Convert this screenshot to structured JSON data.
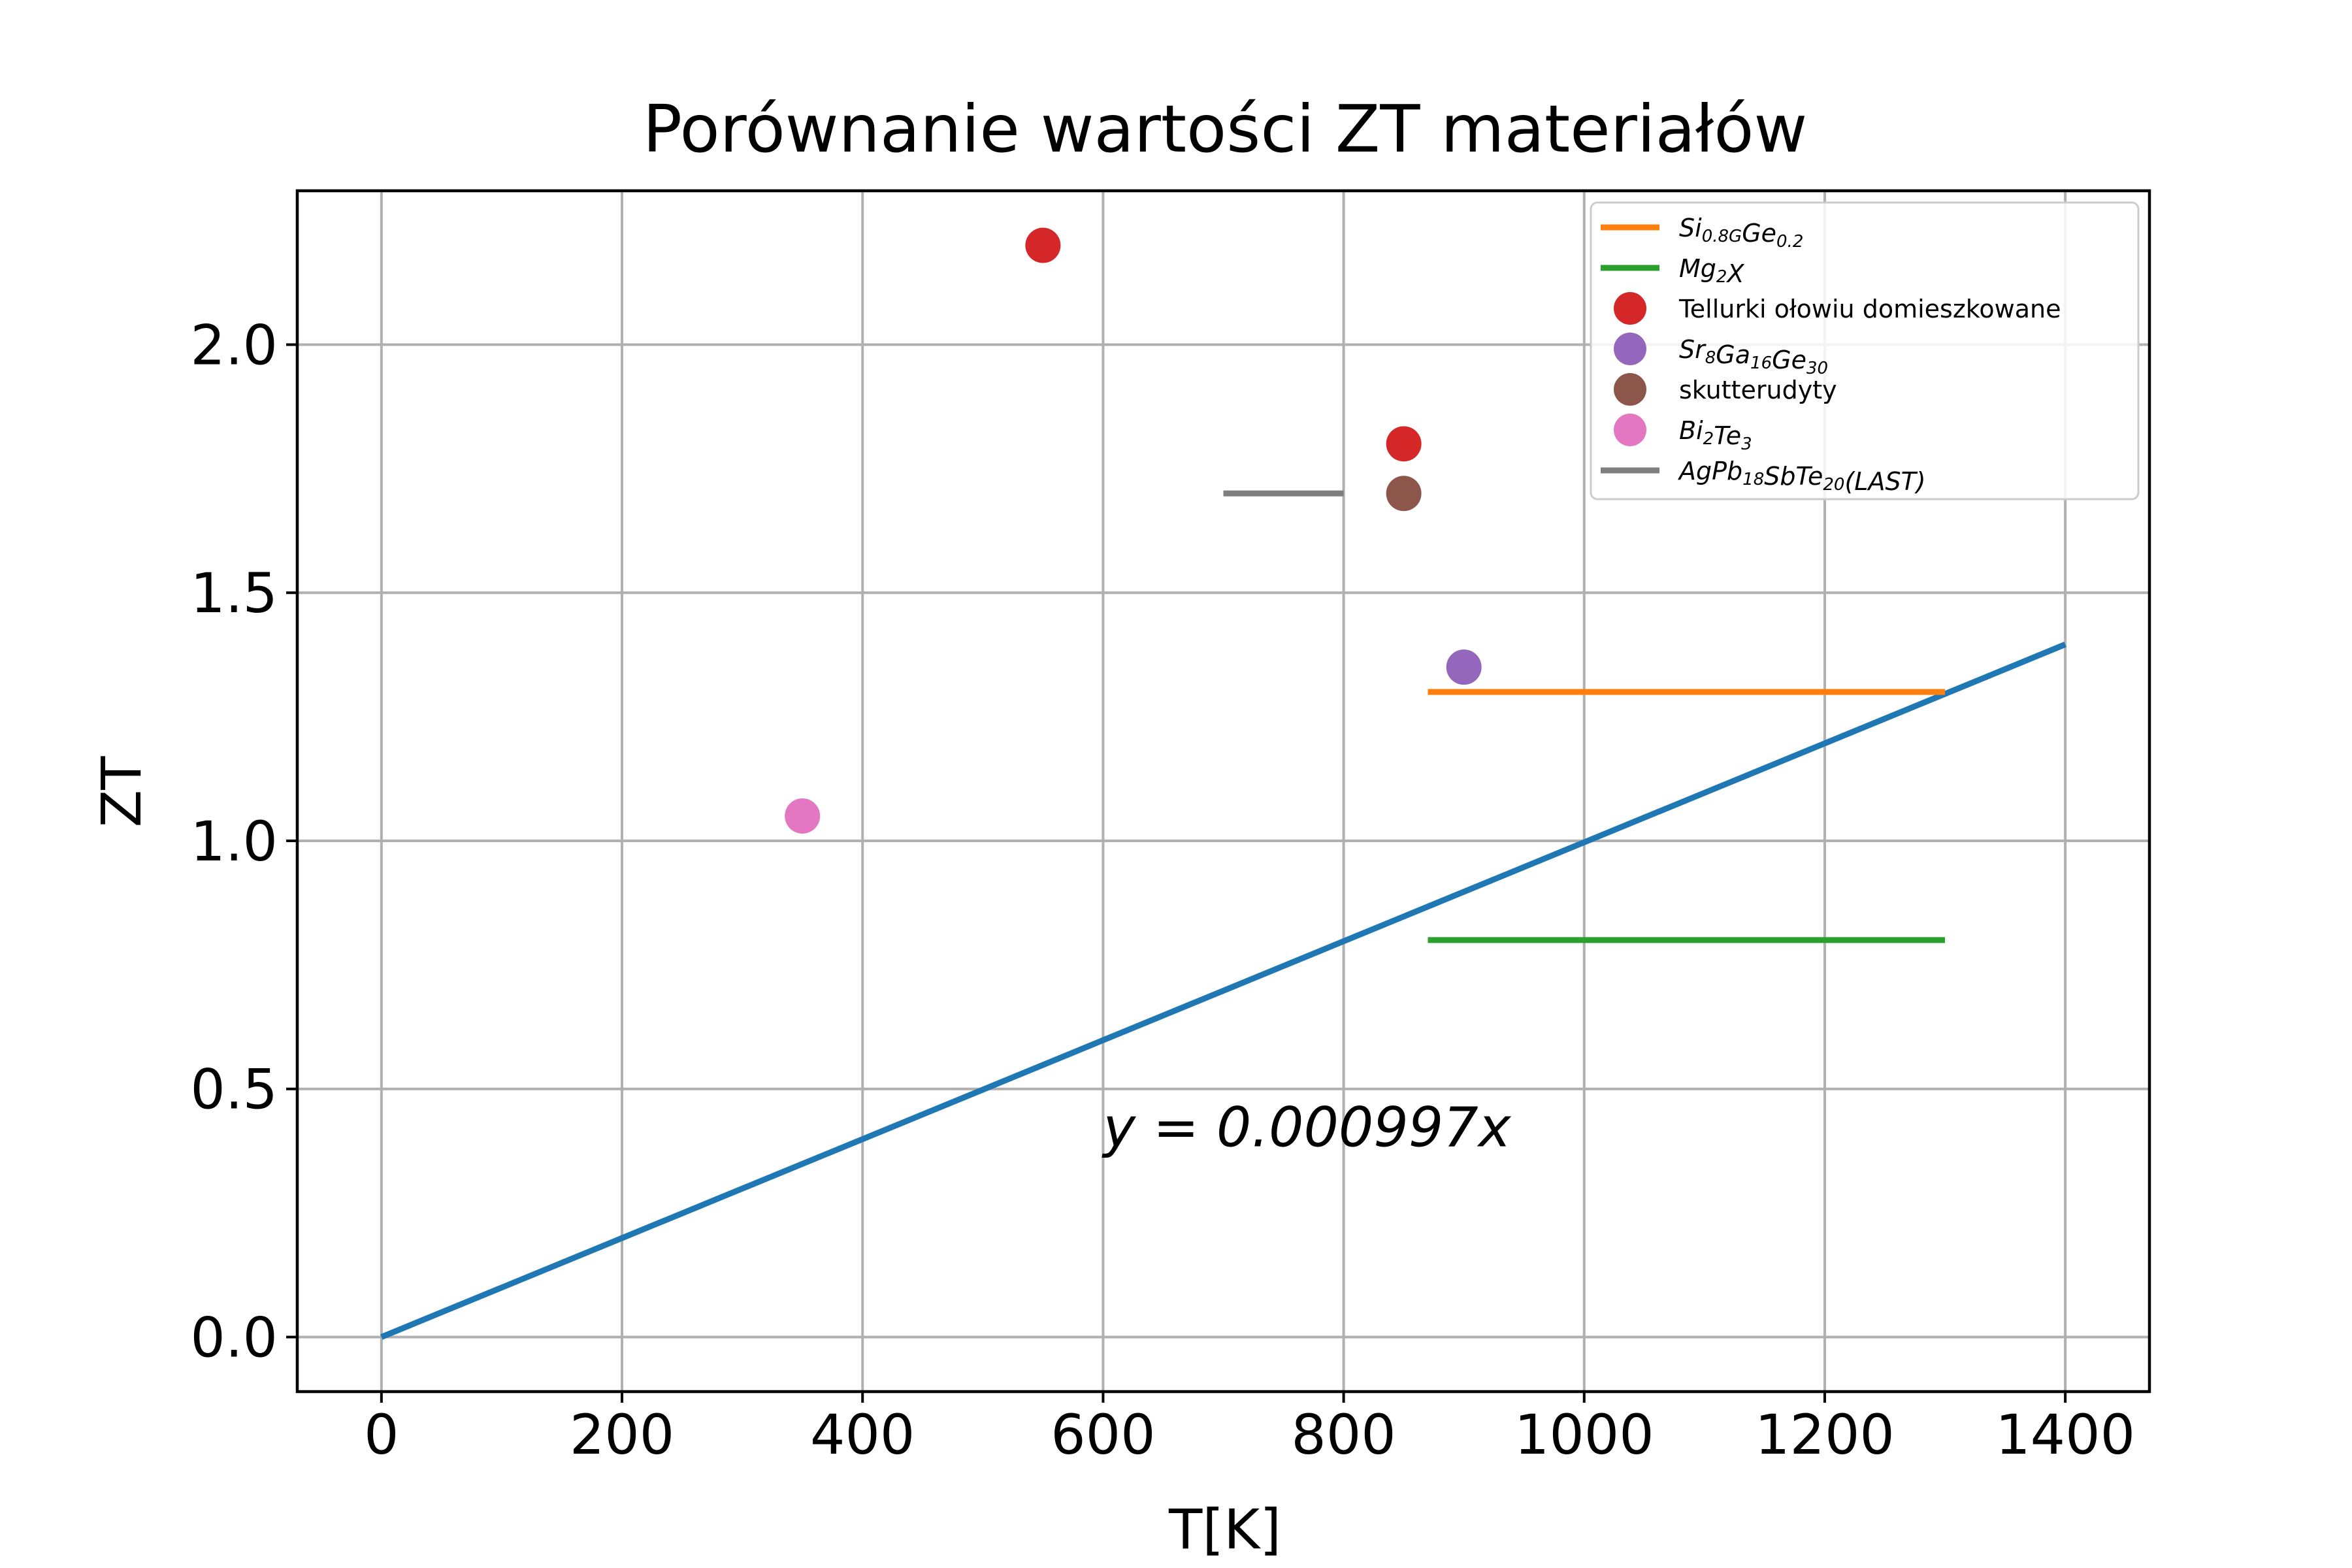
{
  "chart_data": {
    "type": "line",
    "title": "Porównanie wartości ZT materiałów",
    "xlabel": "T[K]",
    "ylabel": "ZT",
    "xlim": [
      -70,
      1470
    ],
    "ylim": [
      -0.11,
      2.31
    ],
    "xticks": [
      0,
      200,
      400,
      600,
      800,
      1000,
      1200,
      1400
    ],
    "yticks": [
      0.0,
      0.5,
      1.0,
      1.5,
      2.0
    ],
    "grid": true,
    "legend_position": "top-right",
    "annotation": {
      "text": "y = 0.000997x",
      "x": 600,
      "y": 0.4
    },
    "series": [
      {
        "kind": "line",
        "color": "#1f77b4",
        "x": [
          0,
          1400
        ],
        "y": [
          0.0,
          1.3958
        ],
        "in_legend": false
      },
      {
        "kind": "line",
        "name": "Si0.8GGe0.2",
        "label_parts": [
          [
            "Si",
            ""
          ],
          [
            "0.8G",
            "sub"
          ],
          [
            "Ge",
            ""
          ],
          [
            "0.2",
            "sub"
          ]
        ],
        "color": "#ff7f0e",
        "x": [
          870,
          1300
        ],
        "y": [
          1.3,
          1.3
        ]
      },
      {
        "kind": "line",
        "name": "Mg2X",
        "label_parts": [
          [
            "Mg",
            ""
          ],
          [
            "2",
            "sub"
          ],
          [
            "X",
            ""
          ]
        ],
        "color": "#2ca02c",
        "x": [
          870,
          1300
        ],
        "y": [
          0.8,
          0.8
        ]
      },
      {
        "kind": "scatter",
        "name": "Tellurki ołowiu domieszkowane",
        "label_parts": [
          [
            "Tellurki ołowiu domieszkowane",
            "plain"
          ]
        ],
        "color": "#d62728",
        "x": [
          550,
          850
        ],
        "y": [
          2.2,
          1.8
        ]
      },
      {
        "kind": "scatter",
        "name": "Sr8Ga16Ge30",
        "label_parts": [
          [
            "Sr",
            ""
          ],
          [
            "8",
            "sub"
          ],
          [
            "Ga",
            ""
          ],
          [
            "16",
            "sub"
          ],
          [
            "Ge",
            ""
          ],
          [
            "30",
            "sub"
          ]
        ],
        "color": "#9467bd",
        "x": [
          900
        ],
        "y": [
          1.35
        ]
      },
      {
        "kind": "scatter",
        "name": "skutterudyty",
        "label_parts": [
          [
            "skutterudyty",
            "plain"
          ]
        ],
        "color": "#8c564b",
        "x": [
          850
        ],
        "y": [
          1.7
        ]
      },
      {
        "kind": "scatter",
        "name": "Bi2Te3",
        "label_parts": [
          [
            "Bi",
            ""
          ],
          [
            "2",
            "sub"
          ],
          [
            "Te",
            ""
          ],
          [
            "3",
            "sub"
          ]
        ],
        "color": "#e377c2",
        "x": [
          350
        ],
        "y": [
          1.05
        ]
      },
      {
        "kind": "line",
        "name": "AgPb18SbTe20(LAST)",
        "label_parts": [
          [
            "AgPb",
            ""
          ],
          [
            "18",
            "sub"
          ],
          [
            "SbTe",
            ""
          ],
          [
            "20",
            "sub"
          ],
          [
            "(LAST)",
            ""
          ]
        ],
        "color": "#7f7f7f",
        "x": [
          700,
          800
        ],
        "y": [
          1.7,
          1.7
        ]
      }
    ]
  }
}
